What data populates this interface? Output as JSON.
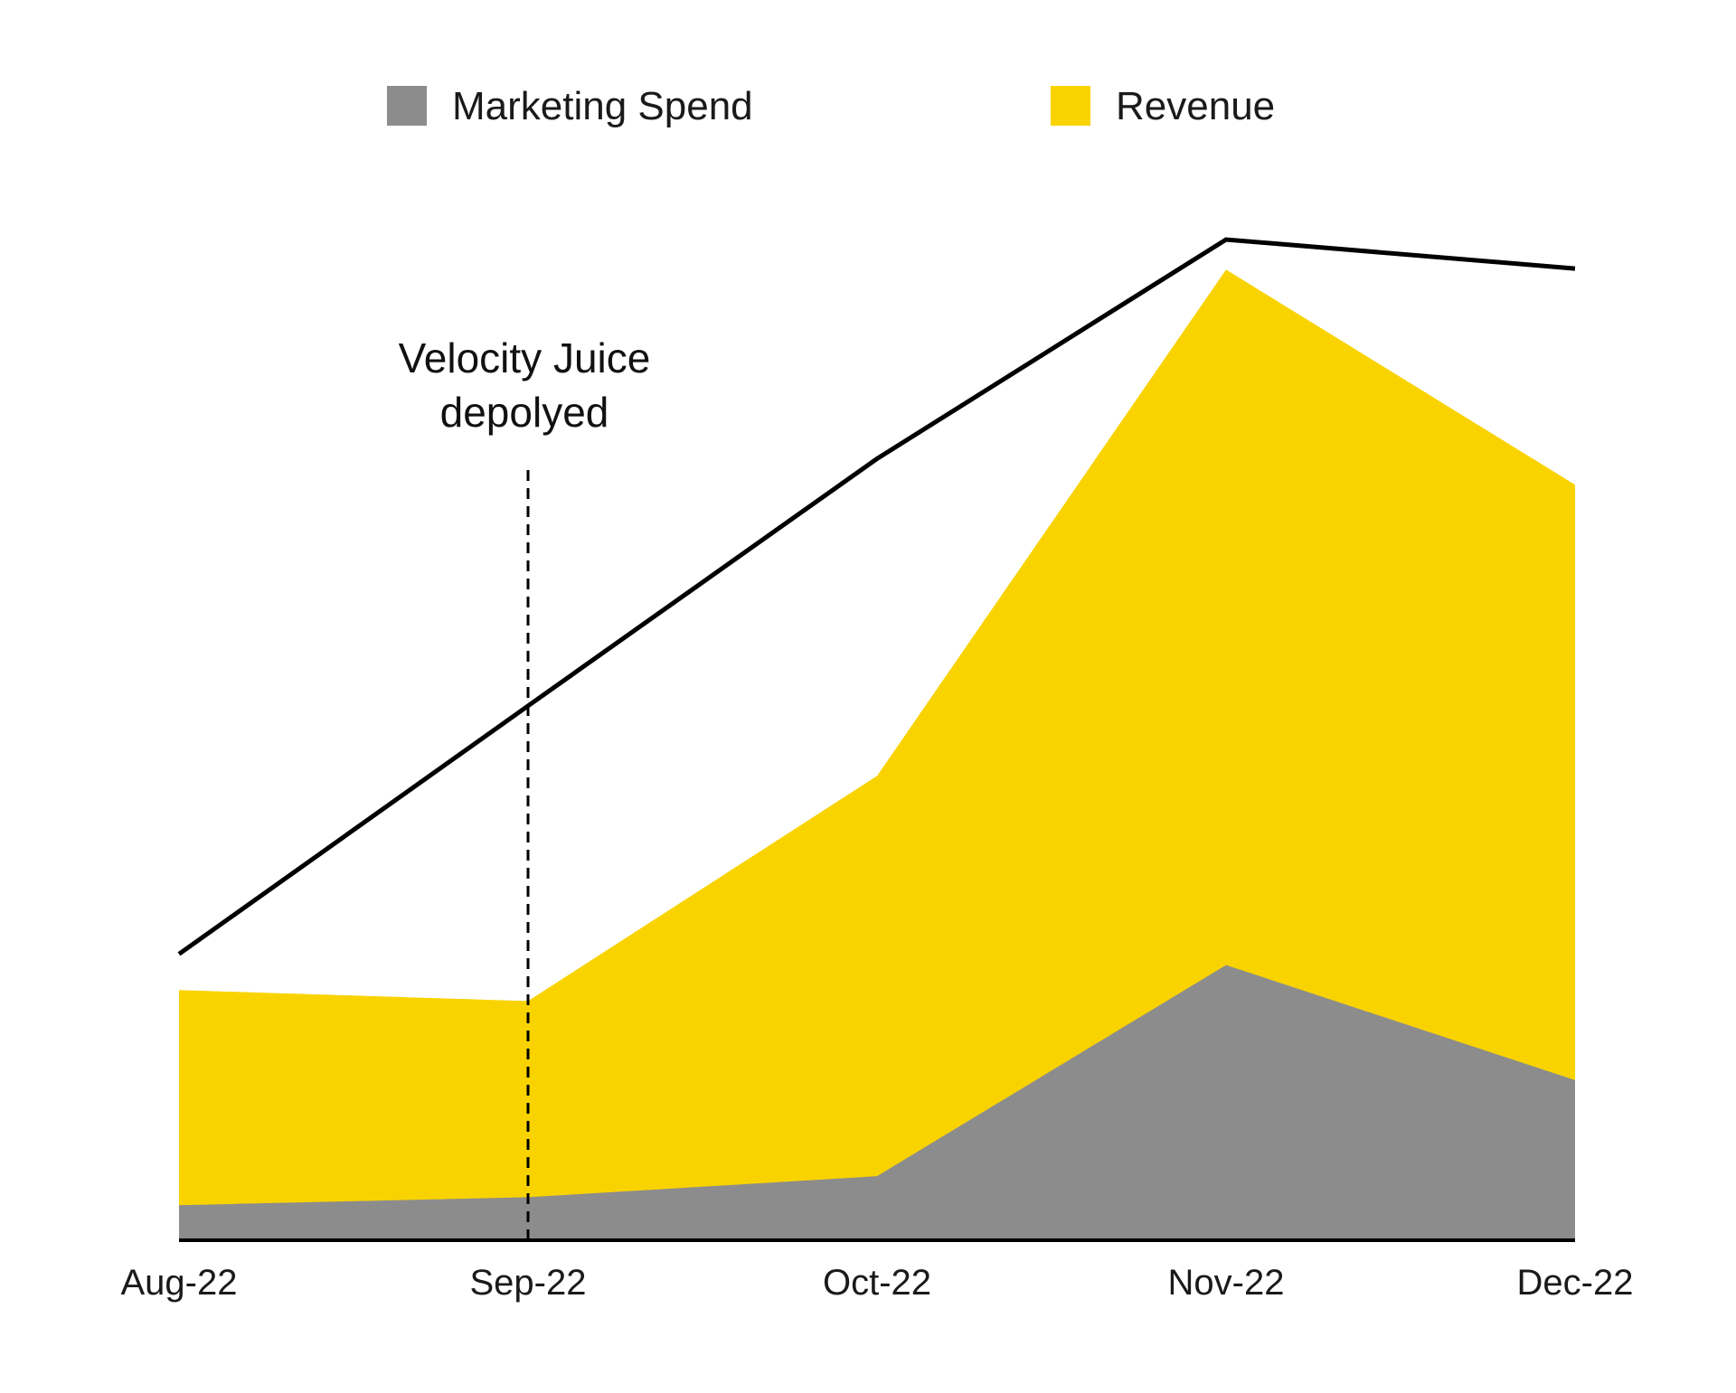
{
  "chart_data": {
    "type": "area",
    "categories": [
      "Aug-22",
      "Sep-22",
      "Oct-22",
      "Nov-22",
      "Dec-22"
    ],
    "ylim": [
      0,
      100
    ],
    "grid": false,
    "legend_placement": "top",
    "series": [
      {
        "name": "Marketing Spend",
        "kind": "stacked-area",
        "color": "#8c8c8c",
        "values": [
          3.5,
          4.3,
          6.4,
          27.5,
          16.0
        ]
      },
      {
        "name": "Revenue",
        "kind": "stacked-area",
        "color": "#f9d300",
        "values": [
          21.5,
          19.6,
          40.0,
          69.5,
          59.5
        ]
      },
      {
        "kind": "line",
        "color": "#000000",
        "values": [
          28.6,
          53.4,
          78.1,
          100.0,
          97.1
        ]
      }
    ],
    "annotation": {
      "lines": [
        "Velocity Juice",
        "depolyed"
      ],
      "at_category": "Sep-22"
    }
  }
}
